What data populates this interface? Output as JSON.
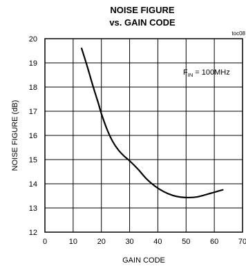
{
  "chart_data": {
    "type": "line",
    "title_line1": "NOISE FIGURE",
    "title_line2": "vs. GAIN CODE",
    "code": "toc08",
    "xlabel": "GAIN CODE",
    "ylabel": "NOISE FIGURE (dB)",
    "xlim": [
      0,
      70
    ],
    "ylim": [
      12,
      20
    ],
    "xticks": [
      0,
      10,
      20,
      30,
      40,
      50,
      60,
      70
    ],
    "yticks": [
      12,
      13,
      14,
      15,
      16,
      17,
      18,
      19,
      20
    ],
    "grid": true,
    "annotation": {
      "main": "F",
      "sub": "IN",
      "rest": " = 100MHz"
    },
    "series": [
      {
        "x": [
          13,
          15,
          17,
          19,
          20,
          22,
          24,
          26,
          28,
          30,
          33,
          36,
          39,
          42,
          45,
          48,
          51,
          54,
          57,
          60,
          63
        ],
        "y": [
          19.6,
          18.85,
          18.05,
          17.3,
          16.9,
          16.25,
          15.75,
          15.4,
          15.15,
          14.95,
          14.6,
          14.2,
          13.9,
          13.68,
          13.53,
          13.45,
          13.43,
          13.46,
          13.55,
          13.65,
          13.75
        ]
      }
    ]
  }
}
